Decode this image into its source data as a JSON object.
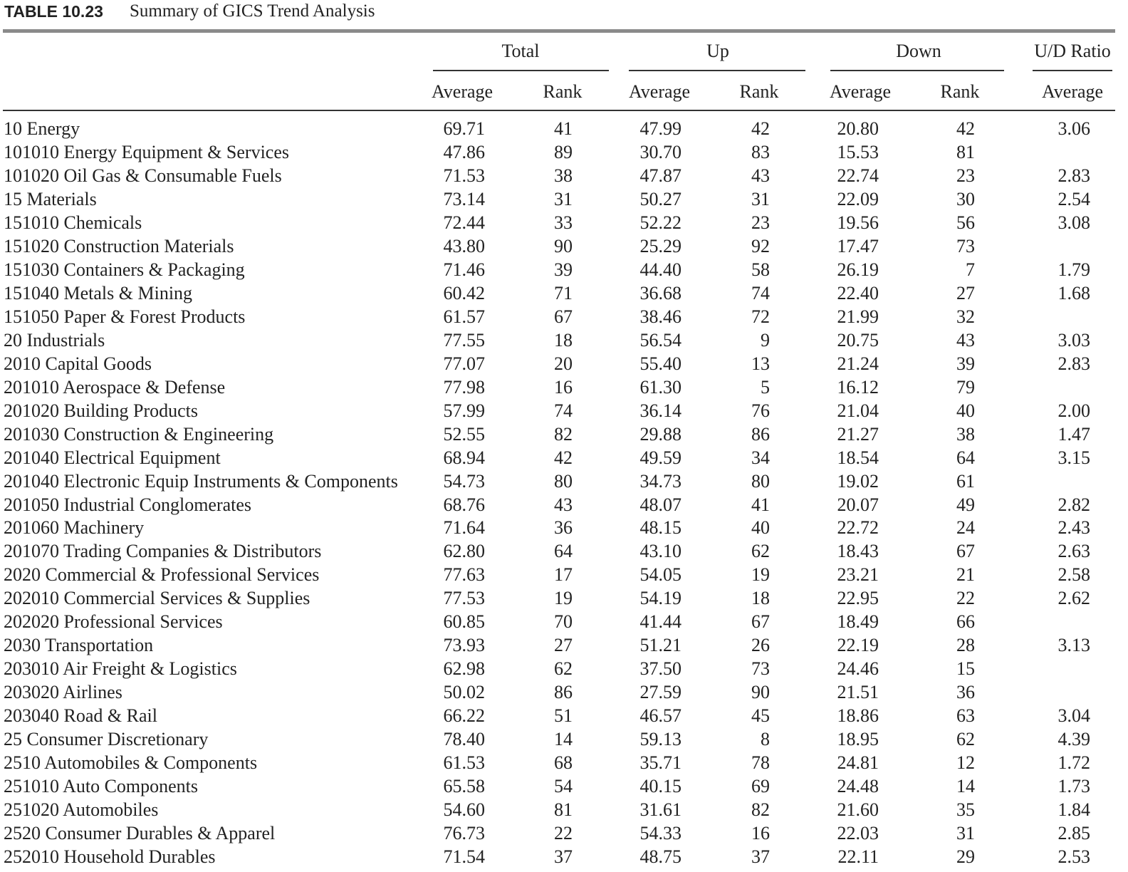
{
  "caption": {
    "label": "TABLE 10.23",
    "title": "Summary of GICS Trend Analysis"
  },
  "table": {
    "groups": [
      "Total",
      "Up",
      "Down",
      "U/D Ratio"
    ],
    "columns": [
      "Average",
      "Rank",
      "Average",
      "Rank",
      "Average",
      "Rank",
      "Average"
    ],
    "rows": [
      [
        "10 Energy",
        "69.71",
        "41",
        "47.99",
        "42",
        "20.80",
        "42",
        "3.06"
      ],
      [
        "101010 Energy Equipment & Services",
        "47.86",
        "89",
        "30.70",
        "83",
        "15.53",
        "81",
        null
      ],
      [
        "101020 Oil Gas & Consumable Fuels",
        "71.53",
        "38",
        "47.87",
        "43",
        "22.74",
        "23",
        "2.83"
      ],
      [
        "15 Materials",
        "73.14",
        "31",
        "50.27",
        "31",
        "22.09",
        "30",
        "2.54"
      ],
      [
        "151010 Chemicals",
        "72.44",
        "33",
        "52.22",
        "23",
        "19.56",
        "56",
        "3.08"
      ],
      [
        "151020 Construction Materials",
        "43.80",
        "90",
        "25.29",
        "92",
        "17.47",
        "73",
        null
      ],
      [
        "151030 Containers & Packaging",
        "71.46",
        "39",
        "44.40",
        "58",
        "26.19",
        "7",
        "1.79"
      ],
      [
        "151040 Metals & Mining",
        "60.42",
        "71",
        "36.68",
        "74",
        "22.40",
        "27",
        "1.68"
      ],
      [
        "151050 Paper & Forest Products",
        "61.57",
        "67",
        "38.46",
        "72",
        "21.99",
        "32",
        null
      ],
      [
        "20 Industrials",
        "77.55",
        "18",
        "56.54",
        "9",
        "20.75",
        "43",
        "3.03"
      ],
      [
        "2010 Capital Goods",
        "77.07",
        "20",
        "55.40",
        "13",
        "21.24",
        "39",
        "2.83"
      ],
      [
        "201010 Aerospace & Defense",
        "77.98",
        "16",
        "61.30",
        "5",
        "16.12",
        "79",
        null
      ],
      [
        "201020 Building Products",
        "57.99",
        "74",
        "36.14",
        "76",
        "21.04",
        "40",
        "2.00"
      ],
      [
        "201030 Construction & Engineering",
        "52.55",
        "82",
        "29.88",
        "86",
        "21.27",
        "38",
        "1.47"
      ],
      [
        "201040 Electrical Equipment",
        "68.94",
        "42",
        "49.59",
        "34",
        "18.54",
        "64",
        "3.15"
      ],
      [
        "201040 Electronic Equip Instruments & Components",
        "54.73",
        "80",
        "34.73",
        "80",
        "19.02",
        "61",
        null
      ],
      [
        "201050 Industrial Conglomerates",
        "68.76",
        "43",
        "48.07",
        "41",
        "20.07",
        "49",
        "2.82"
      ],
      [
        "201060 Machinery",
        "71.64",
        "36",
        "48.15",
        "40",
        "22.72",
        "24",
        "2.43"
      ],
      [
        "201070 Trading Companies & Distributors",
        "62.80",
        "64",
        "43.10",
        "62",
        "18.43",
        "67",
        "2.63"
      ],
      [
        "2020 Commercial & Professional Services",
        "77.63",
        "17",
        "54.05",
        "19",
        "23.21",
        "21",
        "2.58"
      ],
      [
        "202010 Commercial Services & Supplies",
        "77.53",
        "19",
        "54.19",
        "18",
        "22.95",
        "22",
        "2.62"
      ],
      [
        "202020 Professional Services",
        "60.85",
        "70",
        "41.44",
        "67",
        "18.49",
        "66",
        null
      ],
      [
        "2030 Transportation",
        "73.93",
        "27",
        "51.21",
        "26",
        "22.19",
        "28",
        "3.13"
      ],
      [
        "203010 Air Freight & Logistics",
        "62.98",
        "62",
        "37.50",
        "73",
        "24.46",
        "15",
        null
      ],
      [
        "203020 Airlines",
        "50.02",
        "86",
        "27.59",
        "90",
        "21.51",
        "36",
        null
      ],
      [
        "203040 Road & Rail",
        "66.22",
        "51",
        "46.57",
        "45",
        "18.86",
        "63",
        "3.04"
      ],
      [
        "25 Consumer Discretionary",
        "78.40",
        "14",
        "59.13",
        "8",
        "18.95",
        "62",
        "4.39"
      ],
      [
        "2510 Automobiles & Components",
        "61.53",
        "68",
        "35.71",
        "78",
        "24.81",
        "12",
        "1.72"
      ],
      [
        "251010 Auto Components",
        "65.58",
        "54",
        "40.15",
        "69",
        "24.48",
        "14",
        "1.73"
      ],
      [
        "251020 Automobiles",
        "54.60",
        "81",
        "31.61",
        "82",
        "21.60",
        "35",
        "1.84"
      ],
      [
        "2520 Consumer Durables & Apparel",
        "76.73",
        "22",
        "54.33",
        "16",
        "22.03",
        "31",
        "2.85"
      ],
      [
        "252010 Household Durables",
        "71.54",
        "37",
        "48.75",
        "37",
        "22.11",
        "29",
        "2.53"
      ]
    ]
  }
}
